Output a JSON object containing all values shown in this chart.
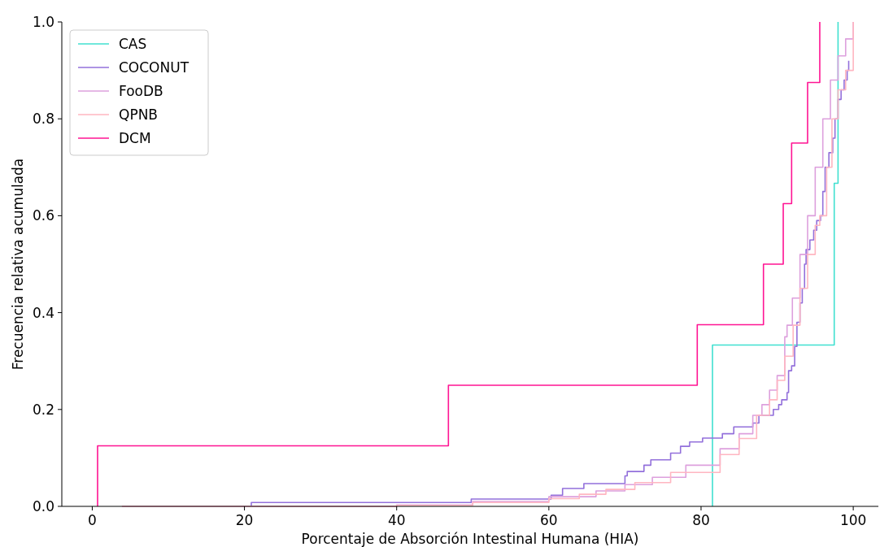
{
  "chart_data": {
    "type": "step",
    "xlabel": "Porcentaje de Absorción Intestinal Humana (HIA)",
    "ylabel": "Frecuencia relativa acumulada",
    "xlim": [
      -4,
      103.3
    ],
    "xticks": [
      0,
      20,
      40,
      60,
      80,
      100
    ],
    "ylim": [
      0,
      1
    ],
    "yticks": [
      {
        "value": 0,
        "label": "0.0"
      },
      {
        "value": 0.2,
        "label": "0.2"
      },
      {
        "value": 0.4,
        "label": "0.4"
      },
      {
        "value": 0.6,
        "label": "0.6"
      },
      {
        "value": 0.8,
        "label": "0.8"
      },
      {
        "value": 1,
        "label": "1.0"
      }
    ],
    "grid": false,
    "legend": "top left",
    "line_style": "solid",
    "marker": "none",
    "series": [
      {
        "name": "CAS",
        "color": "#40e0d0",
        "x": [
          81.5,
          81.5,
          97.5,
          98.0
        ],
        "values": [
          0,
          0.333,
          0.667,
          1.0
        ]
      },
      {
        "name": "COCONUT",
        "color": "#9370db",
        "x": [
          20.9,
          20.9,
          49.8,
          60.3,
          61.8,
          64.6,
          70.0,
          70.3,
          72.5,
          73.4,
          76.0,
          77.3,
          78.5,
          80.2,
          82.8,
          84.3,
          86.8,
          87.6,
          89.5,
          90.2,
          90.6,
          91.3,
          91.5,
          91.9,
          92.3,
          92.6,
          93.0,
          93.3,
          93.6,
          93.8,
          94.3,
          94.8,
          95.2,
          95.7,
          96.0,
          96.3,
          96.8,
          97.3,
          97.6,
          98.0,
          98.4,
          98.8,
          99.2,
          99.4
        ],
        "values": [
          0,
          0.008,
          0.015,
          0.023,
          0.037,
          0.047,
          0.063,
          0.072,
          0.085,
          0.096,
          0.11,
          0.124,
          0.133,
          0.141,
          0.15,
          0.164,
          0.172,
          0.188,
          0.2,
          0.21,
          0.22,
          0.235,
          0.28,
          0.29,
          0.33,
          0.38,
          0.42,
          0.45,
          0.5,
          0.53,
          0.55,
          0.57,
          0.59,
          0.6,
          0.65,
          0.7,
          0.73,
          0.76,
          0.8,
          0.84,
          0.86,
          0.88,
          0.9,
          0.92
        ]
      },
      {
        "name": "FooDB",
        "color": "#dda0dd",
        "x": [
          3.9,
          40,
          50,
          60,
          66.2,
          70,
          73.6,
          78,
          82.5,
          85,
          86.8,
          88,
          89,
          90,
          91,
          91.3,
          92,
          93,
          94,
          95,
          96,
          97,
          98,
          99,
          100,
          100
        ],
        "values": [
          0,
          0.003,
          0.01,
          0.02,
          0.032,
          0.045,
          0.06,
          0.085,
          0.119,
          0.15,
          0.188,
          0.21,
          0.24,
          0.27,
          0.35,
          0.374,
          0.43,
          0.52,
          0.6,
          0.7,
          0.8,
          0.88,
          0.93,
          0.965,
          0.983,
          1.0
        ]
      },
      {
        "name": "QPNB",
        "color": "#ffb6c1",
        "x": [
          3.9,
          40,
          50,
          60,
          64.0,
          67.5,
          71.3,
          76,
          82.5,
          85,
          87.3,
          89,
          90,
          91,
          92.1,
          93,
          94,
          95,
          95.6,
          96.5,
          97.2,
          98,
          99,
          100,
          100
        ],
        "values": [
          0,
          0.002,
          0.008,
          0.016,
          0.025,
          0.035,
          0.049,
          0.07,
          0.107,
          0.14,
          0.188,
          0.22,
          0.26,
          0.31,
          0.374,
          0.45,
          0.52,
          0.58,
          0.6,
          0.7,
          0.8,
          0.86,
          0.9,
          0.94,
          1.0
        ]
      },
      {
        "name": "DCM",
        "color": "#ff1493",
        "x": [
          0.7,
          0.7,
          46.8,
          79.5,
          88.2,
          90.8,
          91.9,
          94.0,
          95.6
        ],
        "values": [
          0,
          0.125,
          0.25,
          0.375,
          0.5,
          0.625,
          0.75,
          0.875,
          1.0
        ]
      }
    ]
  }
}
